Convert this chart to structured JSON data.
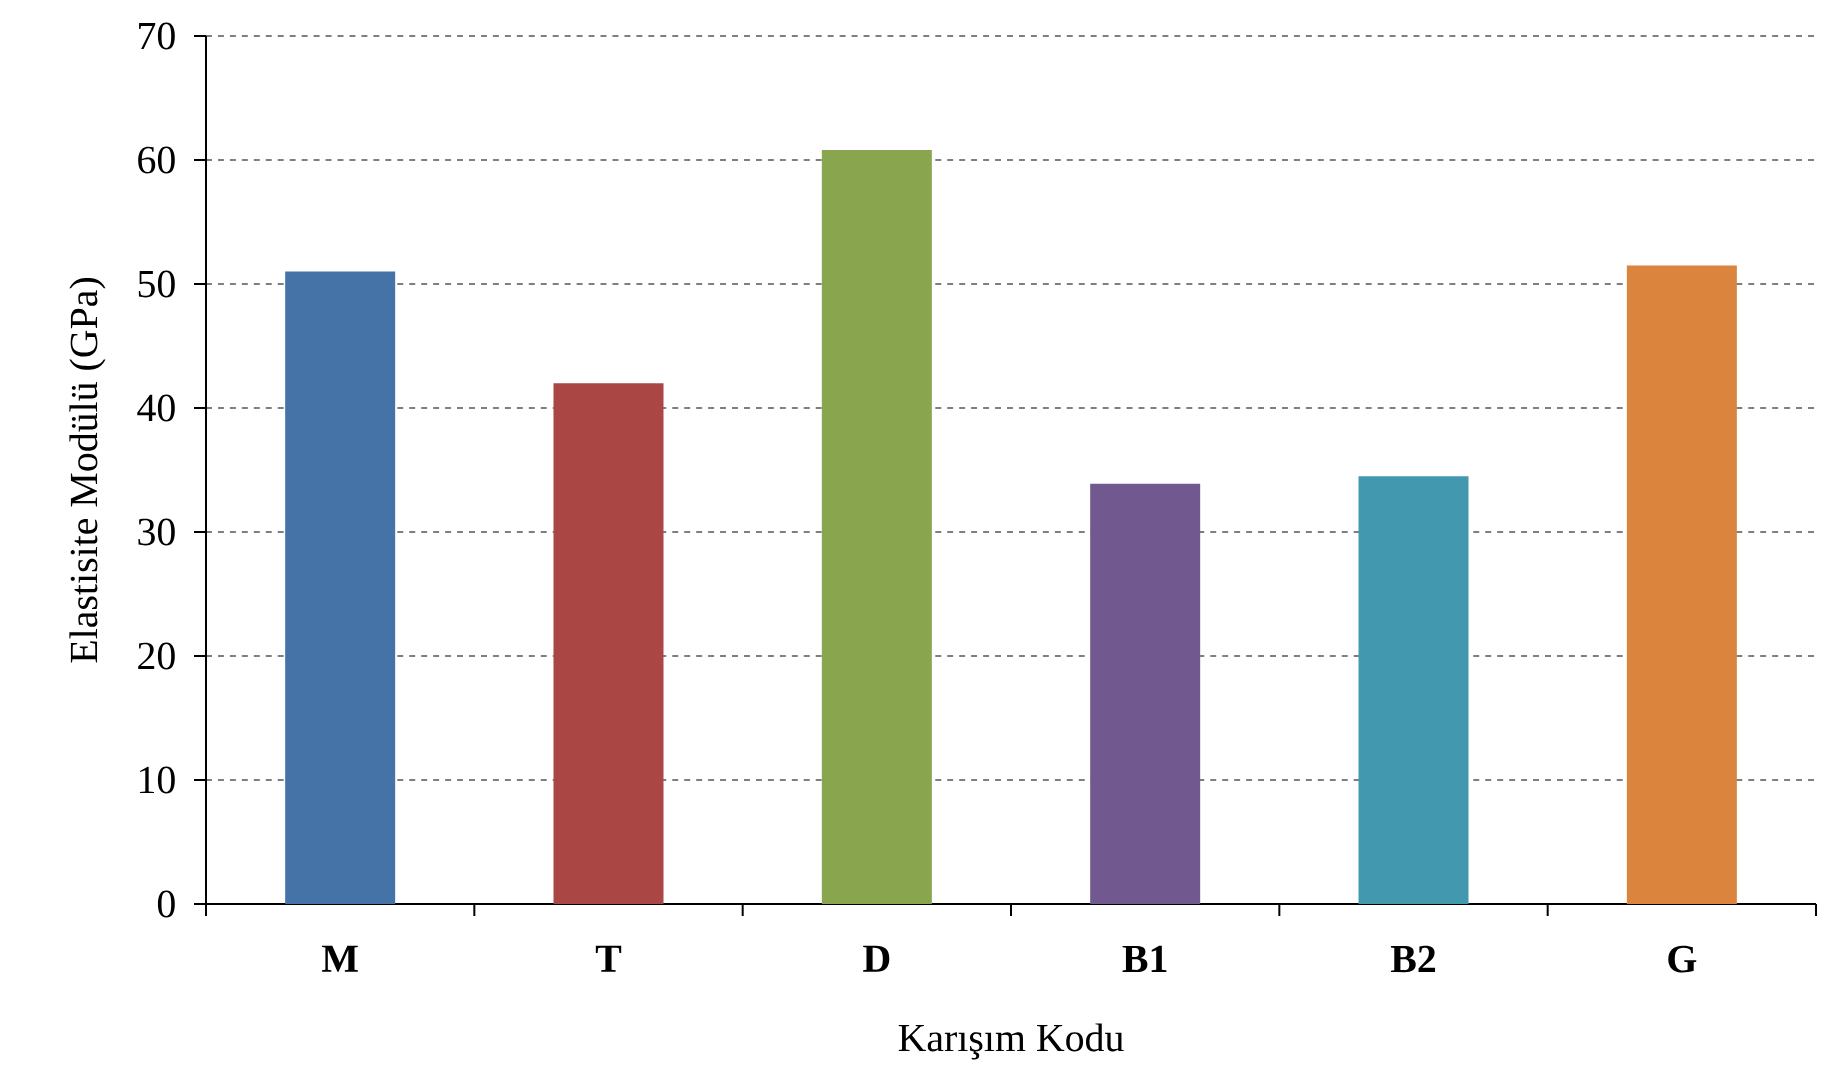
{
  "chart_data": {
    "type": "bar",
    "xlabel": "Karışım Kodu",
    "ylabel": "Elastisite Modülü (GPa)",
    "categories": [
      "M",
      "T",
      "D",
      "B1",
      "B2",
      "G"
    ],
    "values": [
      51.0,
      42.0,
      60.8,
      33.9,
      34.5,
      51.5
    ],
    "colors": [
      "#4572a7",
      "#aa4643",
      "#89a54e",
      "#71588f",
      "#4198af",
      "#db843d"
    ],
    "ylim": [
      0,
      70
    ],
    "yticks": [
      0,
      10,
      20,
      30,
      40,
      50,
      60,
      70
    ],
    "grid": "y"
  }
}
